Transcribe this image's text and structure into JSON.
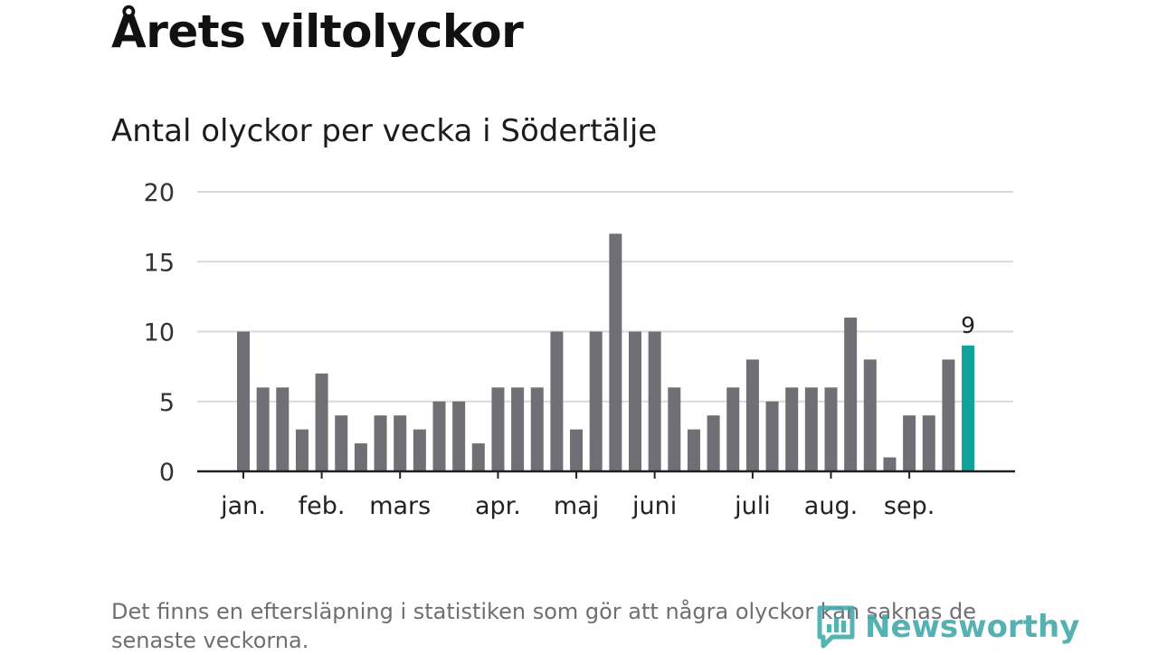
{
  "header": {
    "title": "Årets viltolyckor",
    "subtitle": "Antal olyckor per vecka i Södertälje"
  },
  "footer": {
    "note": "Det finns en eftersläpning i statistiken som gör att några olyckor kan saknas de senaste veckorna.",
    "brand": "Newsworthy"
  },
  "colors": {
    "bar": "#706f76",
    "highlight": "#0fa39b",
    "grid": "#d9d9d9",
    "axis": "#222222",
    "brand": "#3fa7a8"
  },
  "chart_data": {
    "type": "bar",
    "title": "Antal olyckor per vecka i Södertälje",
    "xlabel": "",
    "ylabel": "",
    "ylim": [
      0,
      20
    ],
    "yticks": [
      0,
      5,
      10,
      15,
      20
    ],
    "grid": true,
    "legend": "none",
    "week_values": [
      10,
      6,
      6,
      3,
      7,
      4,
      2,
      4,
      4,
      3,
      5,
      5,
      2,
      6,
      6,
      6,
      10,
      3,
      10,
      17,
      10,
      10,
      6,
      3,
      4,
      6,
      8,
      5,
      6,
      6,
      6,
      11,
      8,
      1,
      4,
      4,
      8,
      9
    ],
    "highlight_index": 37,
    "highlight_label": "9",
    "months": [
      {
        "label": "jan.",
        "at_week": 0
      },
      {
        "label": "feb.",
        "at_week": 4
      },
      {
        "label": "mars",
        "at_week": 8
      },
      {
        "label": "apr.",
        "at_week": 13
      },
      {
        "label": "maj",
        "at_week": 17
      },
      {
        "label": "juni",
        "at_week": 21
      },
      {
        "label": "juli",
        "at_week": 26
      },
      {
        "label": "aug.",
        "at_week": 30
      },
      {
        "label": "sep.",
        "at_week": 34
      }
    ]
  }
}
